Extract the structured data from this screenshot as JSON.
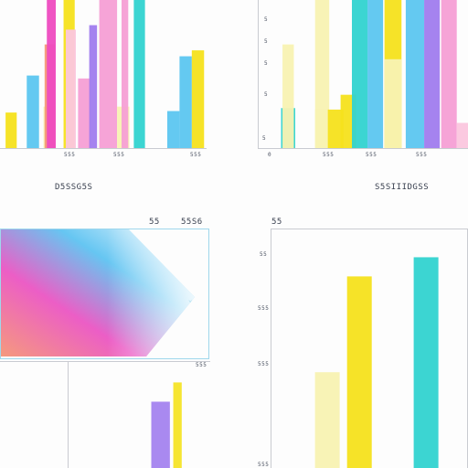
{
  "colors": {
    "yellow": "#f5e21c",
    "cyan": "#32d3d0",
    "sky": "#5cc6f0",
    "pink": "#f59fd5",
    "lightpink": "#fbc6de",
    "violet": "#a07cee",
    "magenta": "#ee4bc0",
    "salmon": "#f49879",
    "cream": "#f8f2b2",
    "axis": "#c9cbd1"
  },
  "chart_data": [
    {
      "type": "bar",
      "caption": "D5SSG5S",
      "tick_labels": [
        "555",
        "555",
        "555"
      ],
      "ylim": [
        0,
        100
      ],
      "bars": [
        {
          "x": 0.5,
          "w": 1.0,
          "y": 24,
          "color": "yellow"
        },
        {
          "x": 2.4,
          "w": 1.1,
          "y": 49,
          "color": "sky"
        },
        {
          "x": 3.9,
          "w": 1.1,
          "y": 28,
          "color": "cream"
        },
        {
          "x": 4.0,
          "w": 0.9,
          "y": 70,
          "color": "salmon"
        },
        {
          "x": 4.2,
          "w": 0.8,
          "y": 100,
          "color": "magenta"
        },
        {
          "x": 5.7,
          "w": 1.0,
          "y": 100,
          "color": "yellow"
        },
        {
          "x": 5.9,
          "w": 0.9,
          "y": 80,
          "color": "lightpink"
        },
        {
          "x": 7.0,
          "w": 1.1,
          "y": 47,
          "color": "pink"
        },
        {
          "x": 8.0,
          "w": 0.7,
          "y": 83,
          "color": "violet"
        },
        {
          "x": 8.9,
          "w": 1.6,
          "y": 100,
          "color": "pink"
        },
        {
          "x": 10.5,
          "w": 1.1,
          "y": 28,
          "color": "cream"
        },
        {
          "x": 10.9,
          "w": 0.6,
          "y": 100,
          "color": "pink"
        },
        {
          "x": 12.0,
          "w": 1.0,
          "y": 100,
          "color": "cyan"
        },
        {
          "x": 15.0,
          "w": 1.1,
          "y": 25,
          "color": "sky"
        },
        {
          "x": 16.1,
          "w": 1.1,
          "y": 62,
          "color": "sky"
        },
        {
          "x": 17.2,
          "w": 1.1,
          "y": 66,
          "color": "yellow"
        }
      ]
    },
    {
      "type": "bar",
      "caption": "S5SIIIDGSS",
      "x_start_label": "0",
      "tick_labels": [
        "555",
        "555",
        "555"
      ],
      "ytick_labels": [
        "5",
        "5",
        "5",
        "5",
        "5"
      ],
      "ylim": [
        0,
        100
      ],
      "bars": [
        {
          "x": 1.0,
          "w": 1.0,
          "y": 27,
          "color": "cyan"
        },
        {
          "x": 1.1,
          "w": 0.8,
          "y": 70,
          "color": "cream"
        },
        {
          "x": 3.4,
          "w": 1.0,
          "y": 100,
          "color": "cream"
        },
        {
          "x": 3.4,
          "w": 0.9,
          "y": 26,
          "color": "cream"
        },
        {
          "x": 4.3,
          "w": 1.1,
          "y": 26,
          "color": "yellow"
        },
        {
          "x": 5.2,
          "w": 1.1,
          "y": 36,
          "color": "yellow"
        },
        {
          "x": 6.0,
          "w": 1.1,
          "y": 100,
          "color": "cyan"
        },
        {
          "x": 7.1,
          "w": 1.1,
          "y": 100,
          "color": "sky"
        },
        {
          "x": 8.3,
          "w": 1.2,
          "y": 100,
          "color": "yellow"
        },
        {
          "x": 8.3,
          "w": 1.2,
          "y": 60,
          "color": "cream"
        },
        {
          "x": 9.8,
          "w": 1.3,
          "y": 100,
          "color": "sky"
        },
        {
          "x": 11.1,
          "w": 1.1,
          "y": 100,
          "color": "violet"
        },
        {
          "x": 12.3,
          "w": 1.1,
          "y": 100,
          "color": "pink"
        },
        {
          "x": 13.4,
          "w": 1.2,
          "y": 17,
          "color": "lightpink"
        }
      ]
    },
    {
      "type": "area",
      "top_labels": [
        "55",
        "55S6"
      ],
      "right_label": "555"
    },
    {
      "type": "bar",
      "top_label": "55",
      "ytick_labels": [
        "55",
        "555",
        "555",
        "555"
      ],
      "ylim": [
        0,
        100
      ],
      "bars": [
        {
          "x": 1.8,
          "w": 1.0,
          "y": 40,
          "color": "cream"
        },
        {
          "x": 3.1,
          "w": 1.0,
          "y": 80,
          "color": "yellow"
        },
        {
          "x": 5.8,
          "w": 1.0,
          "y": 88,
          "color": "cyan"
        }
      ]
    },
    {
      "type": "bar",
      "ylim": [
        0,
        100
      ],
      "bars": [
        {
          "x": 3.0,
          "w": 1.1,
          "y": 62,
          "color": "violet"
        },
        {
          "x": 4.3,
          "w": 0.5,
          "y": 80,
          "color": "yellow"
        }
      ]
    }
  ]
}
